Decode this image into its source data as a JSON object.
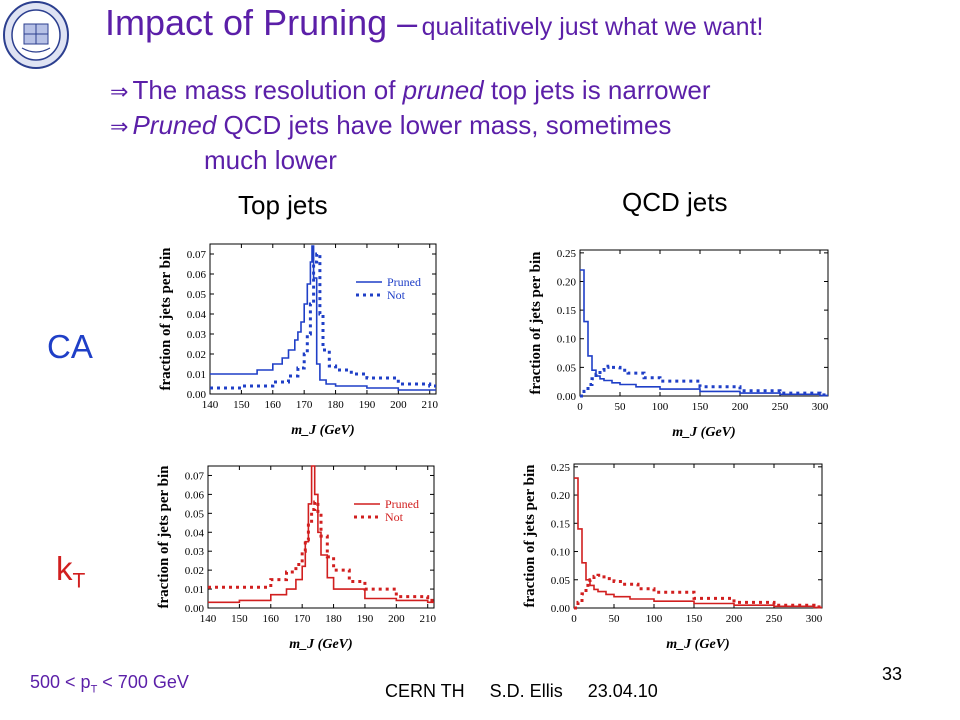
{
  "slide": {
    "title_main": "Impact of Pruning –",
    "title_sub": "qualitatively just what we want!",
    "bullets": [
      {
        "arrow": "⇒",
        "parts": [
          "The mass resolution of ",
          "pruned",
          " top jets is narrower"
        ]
      },
      {
        "arrow": "⇒",
        "parts": [
          "",
          "Pruned",
          " QCD jets have lower mass, sometimes"
        ],
        "continuation": "much lower"
      }
    ],
    "col_titles": [
      "Top jets",
      "QCD jets"
    ],
    "row_labels": [
      "CA",
      "k",
      "T"
    ],
    "pt_range": {
      "prefix": "500 < p",
      "sub": "T",
      "suffix": " < 700 GeV"
    },
    "footer": "CERN TH     S.D. Ellis     23.04.10",
    "page_number": "33",
    "logo": "university-seal-icon",
    "colors": {
      "title": "#5b1fa8",
      "ca": "#1f3fc7",
      "kt": "#d11f1f"
    }
  },
  "chart_data": [
    {
      "id": "ca-top",
      "type": "line",
      "algorithm": "CA",
      "sample": "Top jets",
      "xlabel": "m_J (GeV)",
      "ylabel": "fraction of jets per bin",
      "xlim": [
        140,
        212
      ],
      "ylim": [
        0,
        0.075
      ],
      "xticks": [
        140,
        150,
        160,
        170,
        180,
        190,
        200,
        210
      ],
      "yticks": [
        0.0,
        0.01,
        0.02,
        0.03,
        0.04,
        0.05,
        0.06,
        0.07
      ],
      "ytick_labels": [
        "0.00",
        "0.01",
        "0.02",
        "0.03",
        "0.04",
        "0.05",
        "0.06",
        "0.07"
      ],
      "color": "#1f3fc7",
      "legend": "top-right",
      "series": [
        {
          "name": "Pruned",
          "style": "solid",
          "x": [
            140,
            150,
            155,
            160,
            163,
            165,
            167,
            168,
            169,
            170,
            171,
            172,
            172.5,
            173,
            174,
            175,
            177,
            180,
            190,
            200,
            210
          ],
          "y": [
            0.01,
            0.01,
            0.012,
            0.015,
            0.018,
            0.022,
            0.027,
            0.031,
            0.036,
            0.045,
            0.055,
            0.066,
            0.074,
            0.058,
            0.015,
            0.007,
            0.005,
            0.004,
            0.003,
            0.002,
            0.002
          ]
        },
        {
          "name": "Not",
          "style": "dotted",
          "x": [
            140,
            150,
            160,
            165,
            168,
            170,
            171,
            172,
            173,
            174,
            175,
            176,
            178,
            180,
            185,
            190,
            200,
            210
          ],
          "y": [
            0.003,
            0.004,
            0.006,
            0.009,
            0.013,
            0.02,
            0.03,
            0.045,
            0.066,
            0.07,
            0.04,
            0.022,
            0.014,
            0.012,
            0.01,
            0.008,
            0.005,
            0.004
          ]
        }
      ]
    },
    {
      "id": "ca-qcd",
      "type": "line",
      "algorithm": "CA",
      "sample": "QCD jets",
      "xlabel": "m_J (GeV)",
      "ylabel": "fraction of jets per bin",
      "xlim": [
        0,
        310
      ],
      "ylim": [
        0,
        0.255
      ],
      "xticks": [
        0,
        50,
        100,
        150,
        200,
        250,
        300
      ],
      "yticks": [
        0.0,
        0.05,
        0.1,
        0.15,
        0.2,
        0.25
      ],
      "ytick_labels": [
        "0.00",
        "0.05",
        "0.10",
        "0.15",
        "0.20",
        "0.25"
      ],
      "color": "#1f3fc7",
      "series": [
        {
          "name": "Pruned",
          "style": "solid",
          "x": [
            0,
            5,
            10,
            15,
            20,
            25,
            30,
            40,
            50,
            70,
            100,
            150,
            200,
            250,
            300
          ],
          "y": [
            0.22,
            0.13,
            0.07,
            0.045,
            0.035,
            0.03,
            0.027,
            0.023,
            0.02,
            0.016,
            0.012,
            0.008,
            0.005,
            0.003,
            0.001
          ]
        },
        {
          "name": "Not",
          "style": "dotted",
          "x": [
            0,
            5,
            10,
            15,
            20,
            25,
            30,
            35,
            40,
            50,
            60,
            80,
            100,
            150,
            200,
            250,
            300
          ],
          "y": [
            0.0,
            0.008,
            0.02,
            0.03,
            0.038,
            0.045,
            0.05,
            0.052,
            0.05,
            0.045,
            0.04,
            0.032,
            0.026,
            0.016,
            0.009,
            0.005,
            0.002
          ]
        }
      ]
    },
    {
      "id": "kt-top",
      "type": "line",
      "algorithm": "kT",
      "sample": "Top jets",
      "xlabel": "m_J (GeV)",
      "ylabel": "fraction of jets per bin",
      "xlim": [
        140,
        212
      ],
      "ylim": [
        0,
        0.075
      ],
      "xticks": [
        140,
        150,
        160,
        170,
        180,
        190,
        200,
        210
      ],
      "yticks": [
        0.0,
        0.01,
        0.02,
        0.03,
        0.04,
        0.05,
        0.06,
        0.07
      ],
      "ytick_labels": [
        "0.00",
        "0.01",
        "0.02",
        "0.03",
        "0.04",
        "0.05",
        "0.06",
        "0.07"
      ],
      "color": "#d11f1f",
      "legend": "top-right",
      "series": [
        {
          "name": "Pruned",
          "style": "solid",
          "x": [
            140,
            150,
            160,
            165,
            168,
            170,
            171,
            172,
            173,
            174,
            175,
            176,
            178,
            180,
            190,
            200,
            210
          ],
          "y": [
            0.003,
            0.004,
            0.007,
            0.01,
            0.015,
            0.022,
            0.035,
            0.055,
            0.075,
            0.06,
            0.04,
            0.028,
            0.016,
            0.01,
            0.005,
            0.004,
            0.003
          ]
        },
        {
          "name": "Not",
          "style": "dotted",
          "x": [
            140,
            150,
            160,
            165,
            168,
            170,
            171,
            172,
            173,
            174,
            175,
            176,
            178,
            180,
            185,
            190,
            200,
            210
          ],
          "y": [
            0.011,
            0.011,
            0.015,
            0.019,
            0.023,
            0.03,
            0.036,
            0.045,
            0.052,
            0.056,
            0.05,
            0.038,
            0.027,
            0.02,
            0.014,
            0.01,
            0.006,
            0.004
          ]
        }
      ]
    },
    {
      "id": "kt-qcd",
      "type": "line",
      "algorithm": "kT",
      "sample": "QCD jets",
      "xlabel": "m_J (GeV)",
      "ylabel": "fraction of jets per bin",
      "xlim": [
        0,
        310
      ],
      "ylim": [
        0,
        0.255
      ],
      "xticks": [
        0,
        50,
        100,
        150,
        200,
        250,
        300
      ],
      "yticks": [
        0.0,
        0.05,
        0.1,
        0.15,
        0.2,
        0.25
      ],
      "ytick_labels": [
        "0.00",
        "0.05",
        "0.10",
        "0.15",
        "0.20",
        "0.25"
      ],
      "color": "#d11f1f",
      "series": [
        {
          "name": "Pruned",
          "style": "solid",
          "x": [
            0,
            5,
            10,
            15,
            20,
            25,
            30,
            40,
            50,
            70,
            100,
            150,
            200,
            250,
            300
          ],
          "y": [
            0.23,
            0.14,
            0.08,
            0.05,
            0.04,
            0.033,
            0.029,
            0.024,
            0.02,
            0.016,
            0.012,
            0.008,
            0.005,
            0.003,
            0.001
          ]
        },
        {
          "name": "Not",
          "style": "dotted",
          "x": [
            0,
            5,
            10,
            15,
            20,
            25,
            30,
            35,
            40,
            50,
            60,
            80,
            100,
            150,
            200,
            250,
            300
          ],
          "y": [
            0.0,
            0.01,
            0.025,
            0.04,
            0.05,
            0.056,
            0.058,
            0.055,
            0.052,
            0.047,
            0.042,
            0.034,
            0.028,
            0.017,
            0.01,
            0.005,
            0.002
          ]
        }
      ]
    }
  ]
}
